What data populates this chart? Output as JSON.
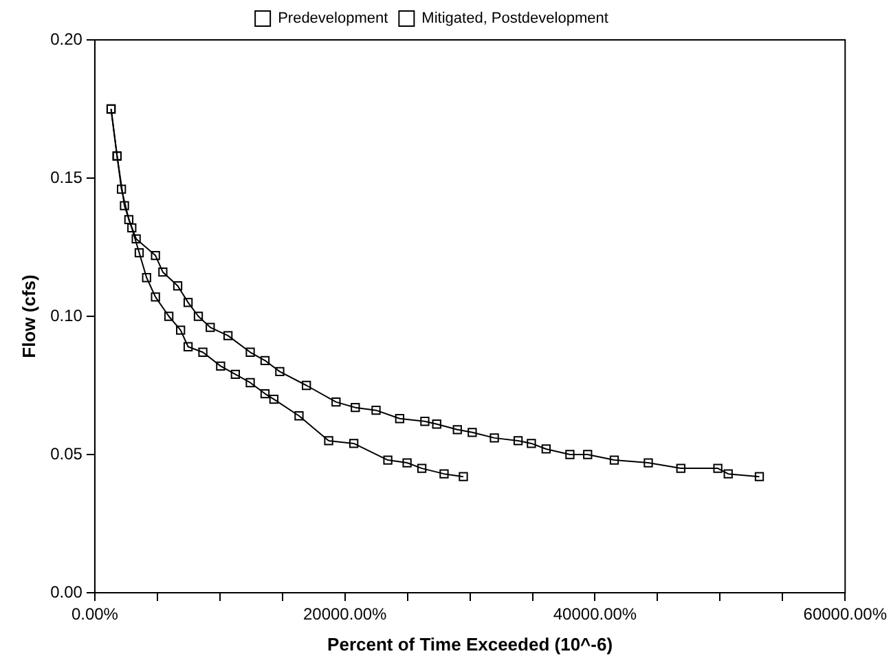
{
  "chart_data": {
    "type": "line",
    "xlabel": "Percent of Time Exceeded (10^-6)",
    "ylabel": "Flow (cfs)",
    "xlim": [
      0,
      60000
    ],
    "xticks": [
      {
        "value": 0,
        "label": "0.00%"
      },
      {
        "value": 5000,
        "label": null
      },
      {
        "value": 10000,
        "label": null
      },
      {
        "value": 15000,
        "label": null
      },
      {
        "value": 20000,
        "label": "20000.00%"
      },
      {
        "value": 25000,
        "label": null
      },
      {
        "value": 30000,
        "label": null
      },
      {
        "value": 35000,
        "label": null
      },
      {
        "value": 40000,
        "label": "40000.00%"
      },
      {
        "value": 45000,
        "label": null
      },
      {
        "value": 50000,
        "label": null
      },
      {
        "value": 55000,
        "label": null
      },
      {
        "value": 60000,
        "label": "60000.00%"
      }
    ],
    "ylim": [
      0,
      0.2
    ],
    "yticks": [
      {
        "value": 0,
        "label": "0.00"
      },
      {
        "value": 0.05,
        "label": "0.05"
      },
      {
        "value": 0.1,
        "label": "0.10"
      },
      {
        "value": 0.15,
        "label": "0.15"
      },
      {
        "value": 0.2,
        "label": "0.20"
      }
    ],
    "grid": false,
    "legend": "top",
    "marker": "square",
    "line_style": "solid",
    "series": [
      {
        "name": "Predevelopment",
        "color": "#000000",
        "x": [
          1300,
          1780,
          2370,
          2960,
          3550,
          4140,
          4850,
          5920,
          6860,
          7460,
          8640,
          10060,
          11240,
          12430,
          13610,
          14320,
          16330,
          18700,
          20710,
          23430,
          24970,
          26150,
          27930,
          29470
        ],
        "values": [
          0.175,
          0.158,
          0.14,
          0.132,
          0.123,
          0.114,
          0.107,
          0.1,
          0.095,
          0.089,
          0.087,
          0.082,
          0.079,
          0.076,
          0.072,
          0.07,
          0.064,
          0.055,
          0.054,
          0.048,
          0.047,
          0.045,
          0.043,
          0.042
        ]
      },
      {
        "name": "Mitigated, Postdevelopment",
        "color": "#000000",
        "x": [
          1300,
          1780,
          2130,
          2720,
          3310,
          4850,
          5440,
          6630,
          7460,
          8280,
          9230,
          10650,
          12430,
          13610,
          14790,
          16920,
          19290,
          20830,
          22490,
          24380,
          26390,
          27340,
          28990,
          30180,
          31950,
          33850,
          34910,
          36090,
          37990,
          39410,
          41540,
          44260,
          46860,
          49820,
          50650,
          53140
        ],
        "values": [
          0.175,
          0.158,
          0.146,
          0.135,
          0.128,
          0.122,
          0.116,
          0.111,
          0.105,
          0.1,
          0.096,
          0.093,
          0.087,
          0.084,
          0.08,
          0.075,
          0.069,
          0.067,
          0.066,
          0.063,
          0.062,
          0.061,
          0.059,
          0.058,
          0.056,
          0.055,
          0.054,
          0.052,
          0.05,
          0.05,
          0.048,
          0.047,
          0.045,
          0.045,
          0.043,
          0.042
        ]
      }
    ]
  }
}
